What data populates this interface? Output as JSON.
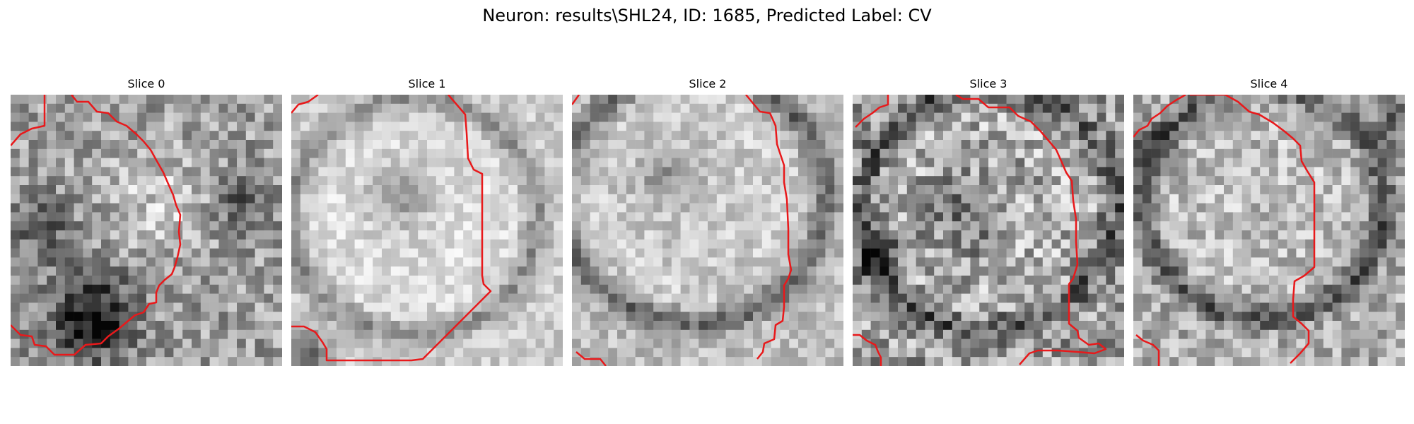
{
  "figure": {
    "title": "Neuron: results\\SHL24, ID: 1685, Predicted Label: CV"
  },
  "panels": [
    {
      "title": "Slice 0"
    },
    {
      "title": "Slice 1"
    },
    {
      "title": "Slice 2"
    },
    {
      "title": "Slice 3"
    },
    {
      "title": "Slice 4"
    }
  ],
  "colors": {
    "contour": "#e8191b",
    "background": "#ffffff"
  }
}
